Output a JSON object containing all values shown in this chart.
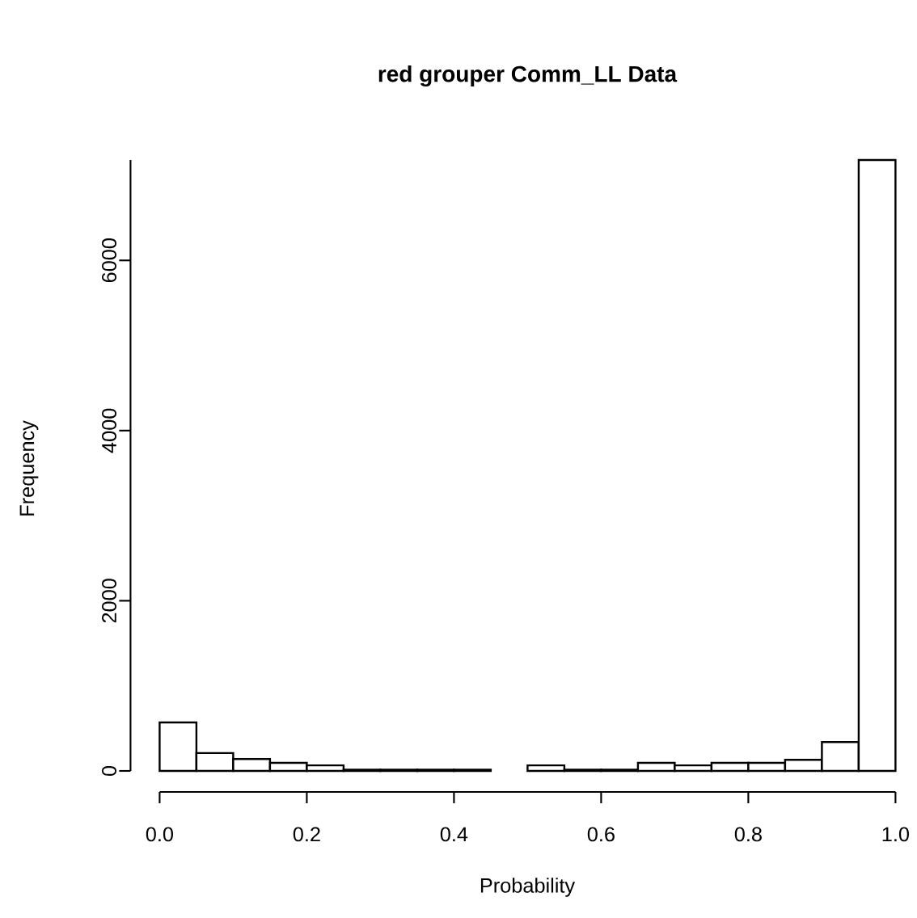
{
  "chart_data": {
    "type": "histogram",
    "title": "red grouper Comm_LL Data",
    "xlabel": "Probability",
    "ylabel": "Frequency",
    "bins": [
      0.0,
      0.05,
      0.1,
      0.15,
      0.2,
      0.25,
      0.3,
      0.35,
      0.4,
      0.45,
      0.5,
      0.55,
      0.6,
      0.65,
      0.7,
      0.75,
      0.8,
      0.85,
      0.9,
      0.95,
      1.0
    ],
    "values": [
      570,
      210,
      140,
      95,
      65,
      15,
      15,
      15,
      15,
      null,
      65,
      15,
      15,
      95,
      65,
      95,
      95,
      130,
      340,
      7180
    ],
    "color": "#ffffff",
    "xlim": [
      0,
      1
    ],
    "ylim": [
      0,
      7180
    ],
    "xticks": [
      {
        "value": 0,
        "label": "0.0"
      },
      0.2,
      0.4,
      0.6,
      0.8,
      {
        "value": 1,
        "label": "1.0"
      }
    ],
    "yticks": [
      0,
      2000,
      4000,
      6000
    ]
  }
}
